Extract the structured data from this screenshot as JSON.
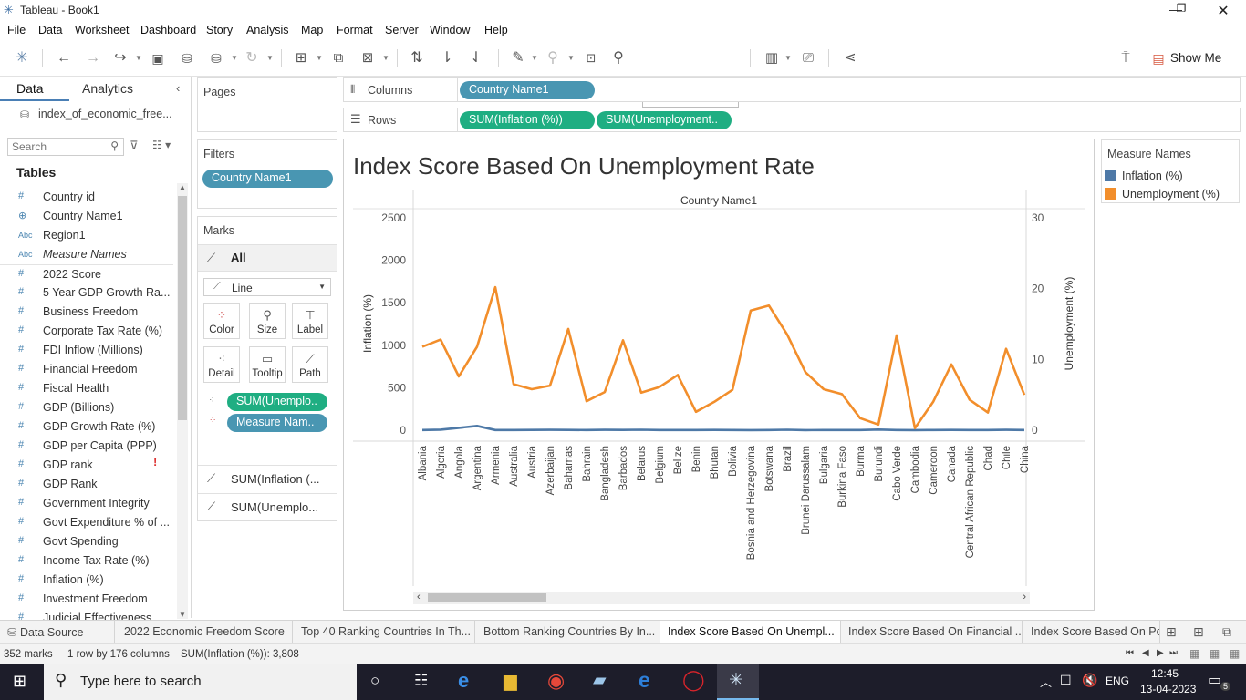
{
  "window": {
    "title": "Tableau - Book1"
  },
  "menu": [
    "File",
    "Data",
    "Worksheet",
    "Dashboard",
    "Story",
    "Analysis",
    "Map",
    "Format",
    "Server",
    "Window",
    "Help"
  ],
  "toolbar": {
    "fit_select": "Standard",
    "show_me": "Show Me"
  },
  "data_panel": {
    "tab_data": "Data",
    "tab_analytics": "Analytics",
    "datasource": "index_of_economic_free...",
    "search_placeholder": "Search",
    "tables_label": "Tables",
    "fields": [
      {
        "icon": "#",
        "name": "Country id"
      },
      {
        "icon": "⊕",
        "name": "Country Name1"
      },
      {
        "icon": "Abc",
        "name": "Region1"
      },
      {
        "icon": "Abc",
        "name": "Measure Names"
      },
      {
        "icon": "#",
        "name": "2022 Score"
      },
      {
        "icon": "#",
        "name": "5 Year GDP Growth Ra..."
      },
      {
        "icon": "#",
        "name": "Business Freedom"
      },
      {
        "icon": "#",
        "name": "Corporate Tax Rate (%)"
      },
      {
        "icon": "#",
        "name": "FDI Inflow (Millions)"
      },
      {
        "icon": "#",
        "name": "Financial Freedom"
      },
      {
        "icon": "#",
        "name": "Fiscal Health"
      },
      {
        "icon": "#",
        "name": "GDP (Billions)"
      },
      {
        "icon": "#",
        "name": "GDP Growth Rate (%)"
      },
      {
        "icon": "#",
        "name": "GDP per Capita (PPP)"
      },
      {
        "icon": "#",
        "name": "GDP rank"
      },
      {
        "icon": "#",
        "name": "GDP Rank"
      },
      {
        "icon": "#",
        "name": "Government Integrity"
      },
      {
        "icon": "#",
        "name": "Govt Expenditure % of ..."
      },
      {
        "icon": "#",
        "name": "Govt Spending"
      },
      {
        "icon": "#",
        "name": "Income Tax Rate (%)"
      },
      {
        "icon": "#",
        "name": "Inflation (%)"
      },
      {
        "icon": "#",
        "name": "Investment Freedom"
      },
      {
        "icon": "#",
        "name": "Judicial Effectiveness"
      }
    ]
  },
  "pages_label": "Pages",
  "filters_label": "Filters",
  "filter_pill": "Country Name1",
  "marks": {
    "label": "Marks",
    "all": "All",
    "type": "Line",
    "buttons": [
      "Color",
      "Size",
      "Label",
      "Detail",
      "Tooltip",
      "Path"
    ],
    "pills": [
      "SUM(Unemplo..",
      "Measure Nam.."
    ],
    "cards": [
      "SUM(Inflation (...",
      "SUM(Unemplo..."
    ]
  },
  "shelves": {
    "columns_label": "Columns",
    "rows_label": "Rows",
    "columns_pill": "Country Name1",
    "rows_pills": [
      "SUM(Inflation (%))",
      "SUM(Unemployment.."
    ]
  },
  "chart_data": {
    "type": "line",
    "title": "Index Score Based On Unemployment Rate",
    "header": "Country Name1",
    "ylabel_left": "Inflation (%)",
    "ylabel_right": "Unemployment (%)",
    "ylim_left": [
      0,
      2500
    ],
    "ylim_right": [
      0,
      30
    ],
    "yticks_left": [
      "2500",
      "2000",
      "1500",
      "1000",
      "500",
      "0"
    ],
    "yticks_right": [
      "30",
      "20",
      "10",
      "0"
    ],
    "categories": [
      "Albania",
      "Algeria",
      "Angola",
      "Argentina",
      "Armenia",
      "Australia",
      "Austria",
      "Azerbaijan",
      "Bahamas",
      "Bahrain",
      "Bangladesh",
      "Barbados",
      "Belarus",
      "Belgium",
      "Belize",
      "Benin",
      "Bhutan",
      "Bolivia",
      "Bosnia and Herzegovina",
      "Botswana",
      "Brazil",
      "Brunei Darussalam",
      "Bulgaria",
      "Burkina Faso",
      "Burma",
      "Burundi",
      "Cabo Verde",
      "Cambodia",
      "Cameroon",
      "Canada",
      "Central African Republic",
      "Chad",
      "Chile",
      "China"
    ],
    "series": [
      {
        "name": "Inflation (%)",
        "axis": "left",
        "color": "#4e79a7",
        "values": [
          2,
          6,
          28,
          50,
          2,
          2,
          3,
          4,
          3,
          2,
          4,
          3,
          5,
          2,
          2,
          2,
          3,
          2,
          1,
          2,
          5,
          1,
          2,
          2,
          2,
          8,
          2,
          1,
          2,
          3,
          2,
          2,
          4,
          2
        ]
      },
      {
        "name": "Unemployment (%)",
        "axis": "right",
        "color": "#f28e2b",
        "values": [
          11.8,
          12.8,
          7.6,
          11.8,
          20.2,
          6.5,
          5.8,
          6.3,
          14.3,
          4.1,
          5.4,
          12.7,
          5.3,
          6.1,
          7.8,
          2.6,
          4,
          5.7,
          16.9,
          17.6,
          13.5,
          8.2,
          5.8,
          5.1,
          1.7,
          0.8,
          13.4,
          0.3,
          4,
          9.3,
          4.3,
          2.5,
          11.5,
          5
        ]
      }
    ]
  },
  "legend": {
    "title": "Measure Names",
    "items": [
      {
        "label": "Inflation (%)",
        "color": "#4e79a7"
      },
      {
        "label": "Unemployment (%)",
        "color": "#f28e2b"
      }
    ]
  },
  "sheet_tabs": [
    "Data Source",
    "2022 Economic Freedom Score",
    "Top 40 Ranking Countries In Th...",
    "Bottom Ranking Countries By In...",
    "Index Score Based On Unempl...",
    "Index Score Based On Financial ...",
    "Index Score Based On Po"
  ],
  "status": {
    "marks": "352 marks",
    "rows": "1 row by 176 columns",
    "sum": "SUM(Inflation (%)): 3,808"
  },
  "taskbar": {
    "search_placeholder": "Type here to search",
    "lang": "ENG",
    "time": "12:45",
    "date": "13-04-2023",
    "notif": "5"
  }
}
